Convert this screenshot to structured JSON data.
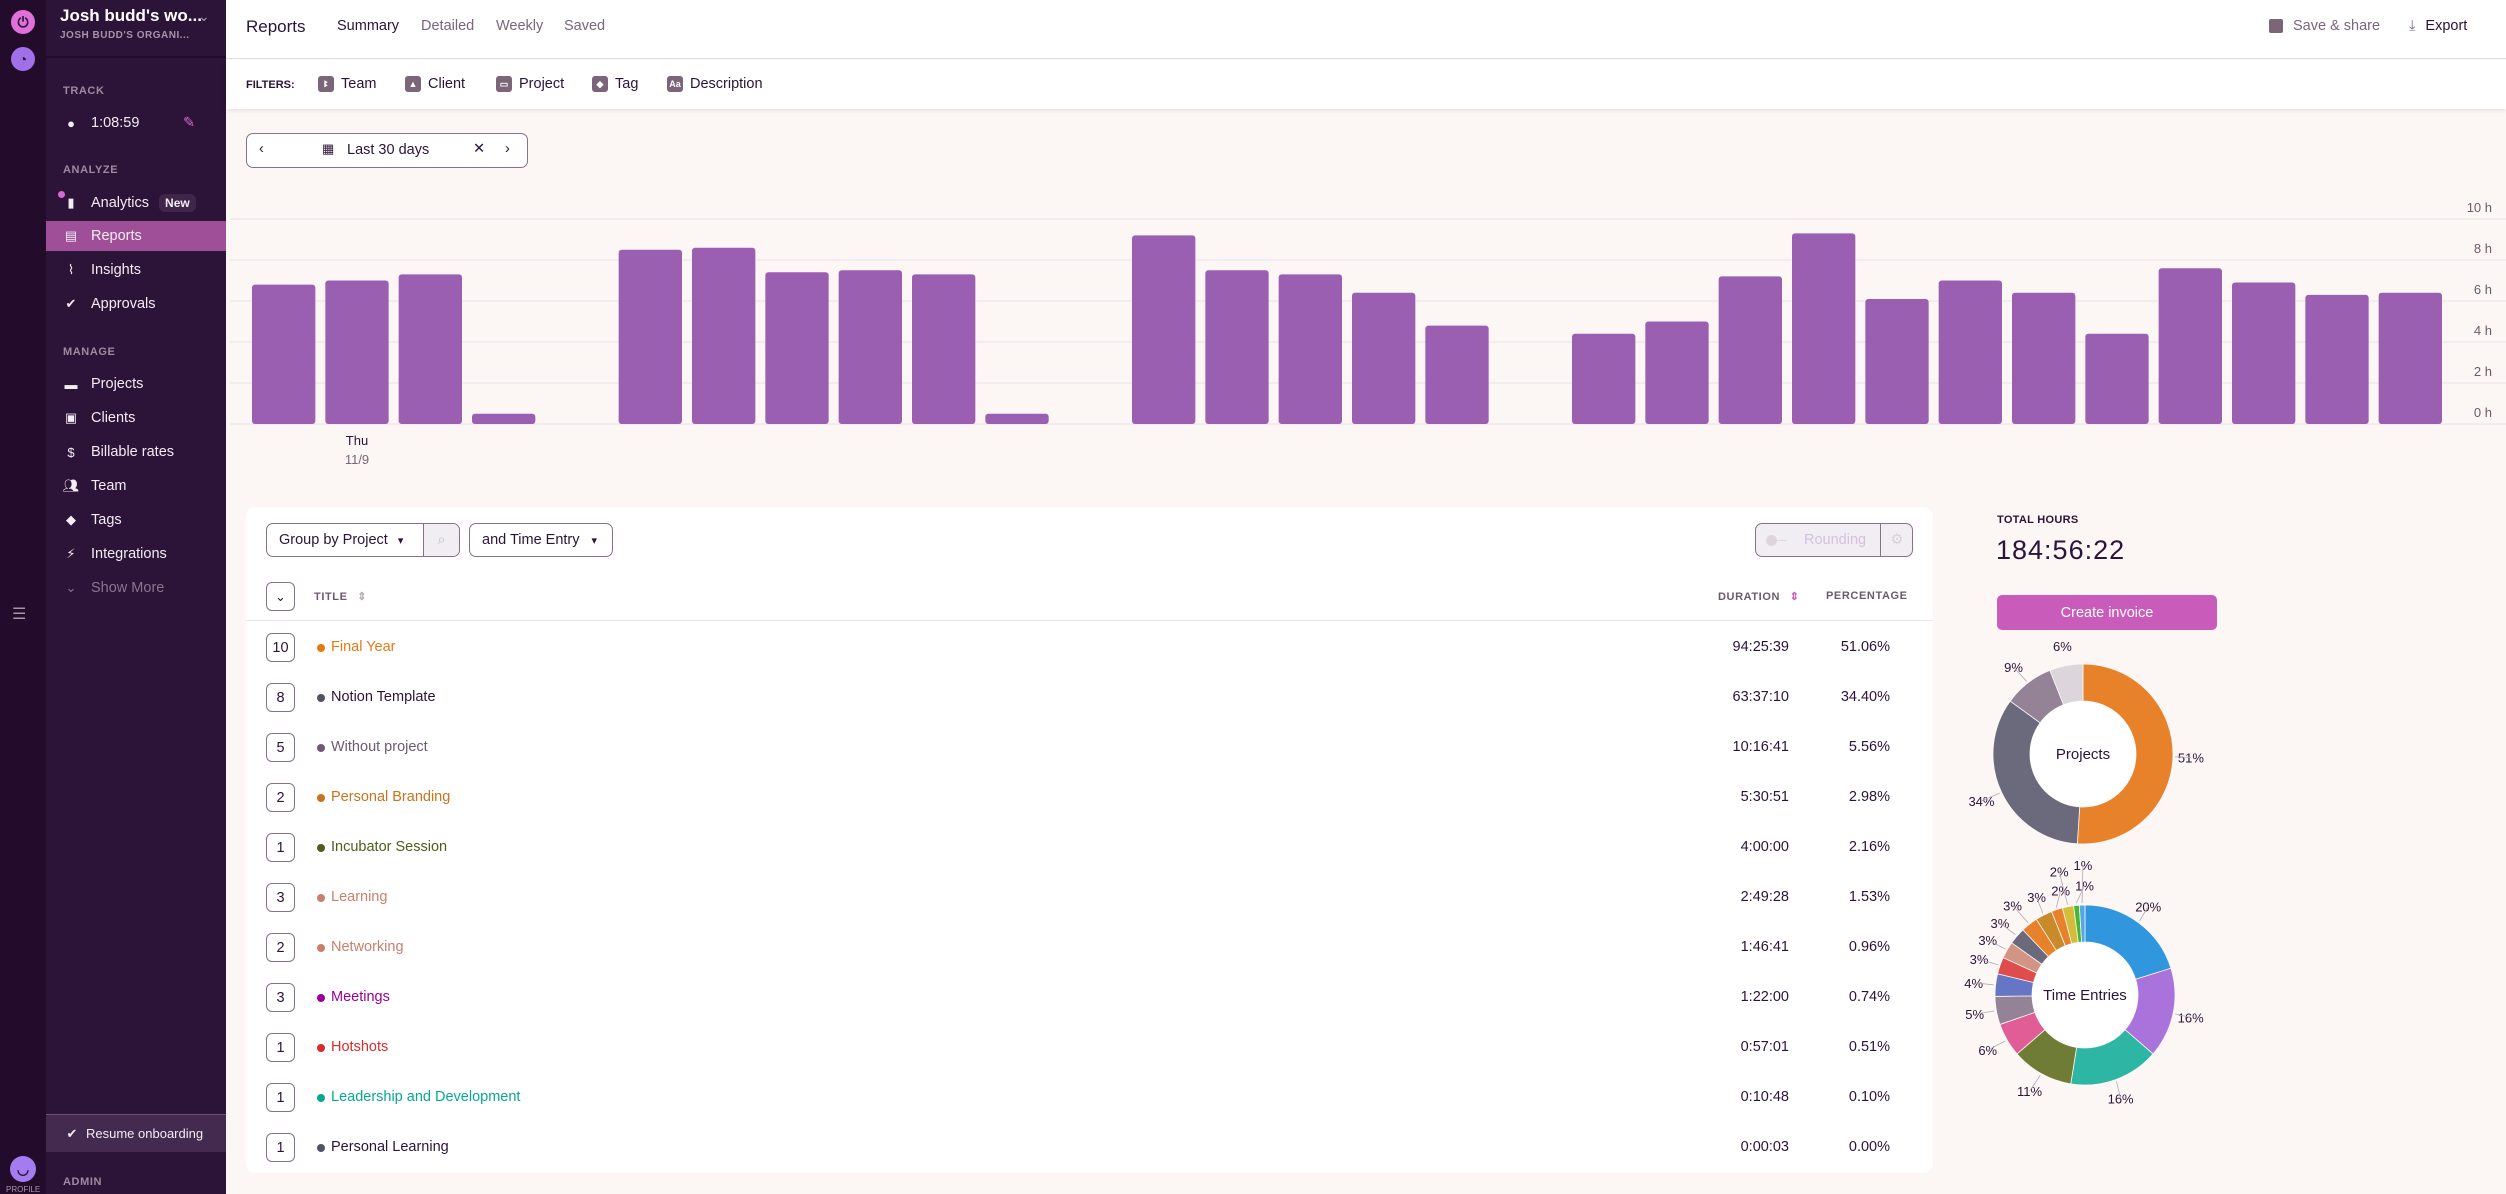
{
  "workspace": {
    "name": "Josh budd's wo...",
    "org": "JOSH BUDD'S ORGANI..."
  },
  "sidebar": {
    "track_label": "TRACK",
    "timer": "1:08:59",
    "analyze_label": "ANALYZE",
    "analyze_items": [
      {
        "label": "Analytics",
        "badge": "New"
      },
      {
        "label": "Reports"
      },
      {
        "label": "Insights"
      },
      {
        "label": "Approvals"
      }
    ],
    "manage_label": "MANAGE",
    "manage_items": [
      {
        "label": "Projects"
      },
      {
        "label": "Clients"
      },
      {
        "label": "Billable rates"
      },
      {
        "label": "Team"
      },
      {
        "label": "Tags"
      },
      {
        "label": "Integrations"
      },
      {
        "label": "Show More"
      }
    ],
    "resume_onboarding": "Resume onboarding",
    "admin_label": "ADMIN",
    "profile_label": "PROFILE"
  },
  "header": {
    "title": "Reports",
    "tabs": [
      "Summary",
      "Detailed",
      "Weekly",
      "Saved"
    ],
    "save_share": "Save & share",
    "export": "Export"
  },
  "filters": {
    "label": "FILTERS:",
    "items": [
      "Team",
      "Client",
      "Project",
      "Tag",
      "Description"
    ]
  },
  "date_range": "Last 30 days",
  "controls": {
    "group_by": "Group by Project",
    "sub_group": "and Time Entry",
    "rounding": "Rounding"
  },
  "table": {
    "headers": {
      "title": "TITLE",
      "duration": "DURATION",
      "percentage": "PERCENTAGE"
    },
    "rows": [
      {
        "count": "10",
        "title": "Final Year",
        "duration": "94:25:39",
        "percentage": "51.06%",
        "color": "#e57a14"
      },
      {
        "count": "8",
        "title": "Notion Template",
        "duration": "63:37:10",
        "percentage": "34.40%",
        "color": "#525266"
      },
      {
        "count": "5",
        "title": "Without project",
        "duration": "10:16:41",
        "percentage": "5.56%",
        "color": "#6e5a72"
      },
      {
        "count": "2",
        "title": "Personal Branding",
        "duration": "5:30:51",
        "percentage": "2.98%",
        "color": "#c7741c"
      },
      {
        "count": "1",
        "title": "Incubator Session",
        "duration": "4:00:00",
        "percentage": "2.16%",
        "color": "#4d5e18"
      },
      {
        "count": "3",
        "title": "Learning",
        "duration": "2:49:28",
        "percentage": "1.53%",
        "color": "#c9806b"
      },
      {
        "count": "2",
        "title": "Networking",
        "duration": "1:46:41",
        "percentage": "0.96%",
        "color": "#c9806b"
      },
      {
        "count": "3",
        "title": "Meetings",
        "duration": "1:22:00",
        "percentage": "0.74%",
        "color": "#990099"
      },
      {
        "count": "1",
        "title": "Hotshots",
        "duration": "0:57:01",
        "percentage": "0.51%",
        "color": "#d92b2b"
      },
      {
        "count": "1",
        "title": "Leadership and Development",
        "duration": "0:10:48",
        "percentage": "0.10%",
        "color": "#06a893"
      },
      {
        "count": "1",
        "title": "Personal Learning",
        "duration": "0:00:03",
        "percentage": "0.00%",
        "color": "#525266"
      }
    ]
  },
  "summary": {
    "total_label": "TOTAL HOURS",
    "total": "184:56:22",
    "create_invoice": "Create invoice"
  },
  "colors": {
    "accent": "#c95cba",
    "bar": "#9b5fb2",
    "sidebar": "#2c1338"
  },
  "chart_data": [
    {
      "type": "bar",
      "title": "",
      "ylabel": "",
      "ylim": [
        0,
        10
      ],
      "yticks": [
        "0 h",
        "2 h",
        "4 h",
        "6 h",
        "8 h",
        "10 h"
      ],
      "x_label": {
        "day": "Thu",
        "date": "11/9",
        "index": 1
      },
      "values": [
        6.8,
        7.0,
        7.3,
        0.5,
        0,
        8.5,
        8.6,
        7.4,
        7.5,
        7.3,
        0.5,
        0,
        9.2,
        7.5,
        7.3,
        6.4,
        4.8,
        0,
        4.4,
        5.0,
        7.2,
        9.3,
        6.1,
        7.0,
        6.4,
        4.4,
        7.6,
        6.9,
        6.3,
        6.4
      ]
    },
    {
      "type": "pie",
      "title": "Projects",
      "labels": [
        "51%",
        "34%",
        "9%",
        "6%"
      ],
      "values": [
        51,
        34,
        9,
        6
      ],
      "colors": [
        "#e8822a",
        "#6b6a7c",
        "#948396",
        "#dcd6dc"
      ]
    },
    {
      "type": "pie",
      "title": "Time Entries",
      "labels": [
        "20%",
        "16%",
        "16%",
        "11%",
        "6%",
        "5%",
        "4%",
        "3%",
        "3%",
        "3%",
        "3%",
        "3%",
        "2%",
        "2%",
        "1%",
        "1%"
      ],
      "values": [
        20,
        16,
        16,
        11,
        6,
        5,
        4,
        3,
        3,
        3,
        3,
        3,
        2,
        2,
        1,
        1
      ],
      "colors": [
        "#3096de",
        "#aa73dc",
        "#2db6a3",
        "#6f7c36",
        "#e05d96",
        "#948396",
        "#6476c4",
        "#e04c4c",
        "#d29584",
        "#6b6a7c",
        "#e8822a",
        "#c98a2a",
        "#e8822a",
        "#d4bd3a",
        "#4cb52e",
        "#50a8e8"
      ]
    }
  ]
}
